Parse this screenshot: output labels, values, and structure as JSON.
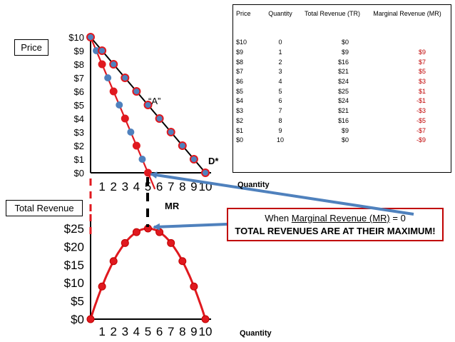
{
  "boxes": {
    "price_label": "Price",
    "total_revenue_label": "Total Revenue"
  },
  "top_chart_labels": {
    "x_axis": "Quantity",
    "point_label": "“A”",
    "demand_label": "D*",
    "mr_label": "MR"
  },
  "bottom_chart_labels": {
    "x_axis": "Quantity"
  },
  "callout": {
    "pre": "When ",
    "underlined": "Marginal Revenue (MR)",
    "post": " = 0",
    "line2": "TOTAL REVENUES ARE AT THEIR MAXIMUM!"
  },
  "table": {
    "headers": {
      "price": "Price",
      "quantity": "Quantity",
      "tr": "Total Revenue (TR)",
      "mr": "Marginal Revenue (MR)"
    },
    "rows": [
      {
        "price": "$10",
        "qty": "0",
        "tr": "$0",
        "mr": ""
      },
      {
        "price": "$9",
        "qty": "1",
        "tr": "$9",
        "mr": "$9"
      },
      {
        "price": "$8",
        "qty": "2",
        "tr": "$16",
        "mr": "$7"
      },
      {
        "price": "$7",
        "qty": "3",
        "tr": "$21",
        "mr": "$5"
      },
      {
        "price": "$6",
        "qty": "4",
        "tr": "$24",
        "mr": "$3"
      },
      {
        "price": "$5",
        "qty": "5",
        "tr": "$25",
        "mr": "$1"
      },
      {
        "price": "$4",
        "qty": "6",
        "tr": "$24",
        "mr": "-$1"
      },
      {
        "price": "$3",
        "qty": "7",
        "tr": "$21",
        "mr": "-$3"
      },
      {
        "price": "$2",
        "qty": "8",
        "tr": "$16",
        "mr": "-$5"
      },
      {
        "price": "$1",
        "qty": "9",
        "tr": "$9",
        "mr": "-$7"
      },
      {
        "price": "$0",
        "qty": "10",
        "tr": "$0",
        "mr": "-$9"
      }
    ]
  },
  "colors": {
    "red": "#e0191f",
    "red_text": "#c00000",
    "blue_dot": "#4f81bd",
    "arrow": "#4f81bd",
    "black": "#000000"
  },
  "chart_data": [
    {
      "type": "line",
      "xlabel": "Quantity",
      "ylabel": "Price",
      "x_ticks": [
        "1",
        "2",
        "3",
        "4",
        "5",
        "6",
        "7",
        "8",
        "9",
        "10"
      ],
      "y_ticks": [
        "$0",
        "$1",
        "$2",
        "$3",
        "$4",
        "$5",
        "$6",
        "$7",
        "$8",
        "$9",
        "$10"
      ],
      "xlim": [
        0,
        10
      ],
      "ylim": [
        0,
        10
      ],
      "series": [
        {
          "name": "D*",
          "x": [
            0,
            1,
            2,
            3,
            4,
            5,
            6,
            7,
            8,
            9,
            10
          ],
          "y": [
            10,
            9,
            8,
            7,
            6,
            5,
            4,
            3,
            2,
            1,
            0
          ]
        },
        {
          "name": "MR",
          "x": [
            0,
            1,
            2,
            3,
            4,
            5
          ],
          "y": [
            10,
            8,
            6,
            4,
            2,
            0
          ]
        },
        {
          "x": [
            0.5,
            1.5,
            2.5,
            3.5,
            4.5
          ],
          "y": [
            9,
            7,
            5,
            3,
            1
          ]
        }
      ],
      "annotations": [
        "“A”",
        "D*",
        "MR"
      ]
    },
    {
      "type": "line",
      "xlabel": "Quantity",
      "ylabel": "",
      "x_ticks": [
        "1",
        "2",
        "3",
        "4",
        "5",
        "6",
        "7",
        "8",
        "9",
        "10"
      ],
      "y_ticks": [
        "$0",
        "$5",
        "$10",
        "$15",
        "$20",
        "$25"
      ],
      "xlim": [
        0,
        10
      ],
      "ylim": [
        0,
        25
      ],
      "series": [
        {
          "x": [
            0,
            1,
            2,
            3,
            4,
            5,
            6,
            7,
            8,
            9,
            10
          ],
          "y": [
            0,
            9,
            16,
            21,
            24,
            25,
            24,
            21,
            16,
            9,
            0
          ]
        }
      ]
    }
  ]
}
